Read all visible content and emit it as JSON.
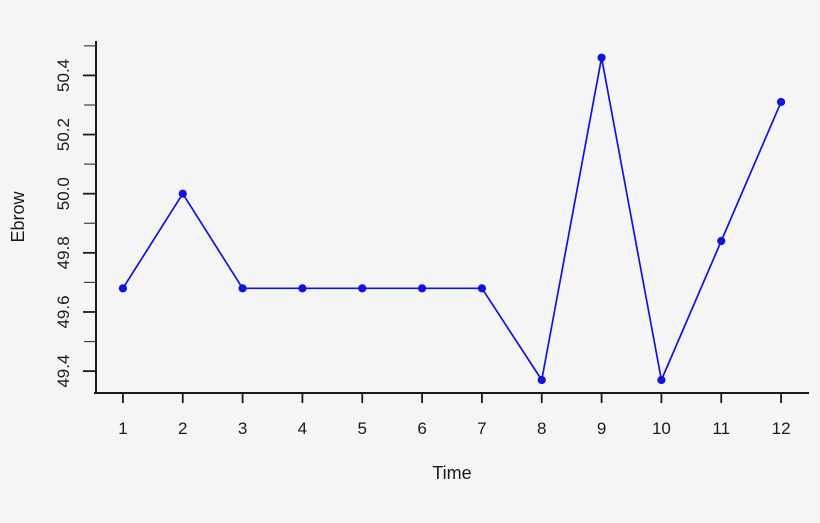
{
  "figure": {
    "background": "#f5f5f5",
    "axis_color": "#1a1a1a",
    "text_color": "#1a1a1a"
  },
  "chart_data": {
    "type": "line",
    "title": "",
    "xlabel": "Time",
    "ylabel": "Ebrow",
    "grid": false,
    "legend": "none",
    "xlim": [
      0.55,
      12.45
    ],
    "ylim": [
      49.326,
      50.513
    ],
    "xticks": [
      1,
      2,
      3,
      4,
      5,
      6,
      7,
      8,
      9,
      10,
      11,
      12
    ],
    "yticks_labeled": [
      {
        "value": 49.4,
        "label": "49.4"
      },
      {
        "value": 49.6,
        "label": "49.6"
      },
      {
        "value": 49.8,
        "label": "49.8"
      },
      {
        "value": 50.0,
        "label": "50.0"
      },
      {
        "value": 50.2,
        "label": "50.2"
      },
      {
        "value": 50.4,
        "label": "50.4"
      }
    ],
    "yticks_unlabeled": [
      49.5,
      49.7,
      49.9,
      50.1,
      50.3,
      50.5
    ],
    "series": [
      {
        "name": "Ebrow",
        "color": "#1212dd",
        "marker": "filled-circle",
        "x": [
          1,
          2,
          3,
          4,
          5,
          6,
          7,
          8,
          9,
          10,
          11,
          12
        ],
        "y": [
          49.68,
          50.0,
          49.68,
          49.68,
          49.68,
          49.68,
          49.68,
          49.37,
          50.46,
          49.37,
          49.84,
          50.31
        ]
      }
    ]
  }
}
